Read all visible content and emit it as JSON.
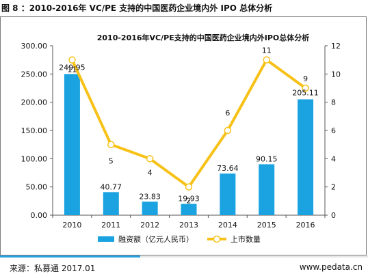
{
  "figure_title": "图 8 ：2010-2016年 VC/PE 支持的中国医药企业境内外 IPO 总体分析",
  "footer": {
    "source": "来源：私募通 2017.01",
    "url": "www.pedata.cn"
  },
  "colors": {
    "bar": "#1aa3e0",
    "line": "#f7c117",
    "marker_fill": "#ffffff",
    "rule": "#27a2de"
  },
  "chart_data": {
    "type": "bar+line",
    "title": "2010-2016年VC/PE支持的中国医药企业境内外IPO总体分析",
    "categories": [
      "2010",
      "2011",
      "2012",
      "2013",
      "2014",
      "2015",
      "2016"
    ],
    "series": [
      {
        "name": "融资额（亿元人民币）",
        "type": "bar",
        "axis": "left",
        "values": [
          249.95,
          40.77,
          23.83,
          19.93,
          73.64,
          90.15,
          205.11
        ],
        "labels": [
          "249.95",
          "40.77",
          "23.83",
          "19.93",
          "73.64",
          "90.15",
          "205.11"
        ]
      },
      {
        "name": "上市数量",
        "type": "line",
        "axis": "right",
        "values": [
          11,
          5,
          4,
          2,
          6,
          11,
          9
        ],
        "labels": [
          "11",
          "5",
          "4",
          "2",
          "6",
          "11",
          "9"
        ]
      }
    ],
    "y_left": {
      "min": 0,
      "max": 300,
      "ticks": [
        "0.00",
        "50.00",
        "100.00",
        "150.00",
        "200.00",
        "250.00",
        "300.00"
      ]
    },
    "y_right": {
      "min": 0,
      "max": 12,
      "ticks": [
        "0",
        "2",
        "4",
        "6",
        "8",
        "10",
        "12"
      ]
    },
    "grid": false,
    "legend_position": "bottom"
  }
}
